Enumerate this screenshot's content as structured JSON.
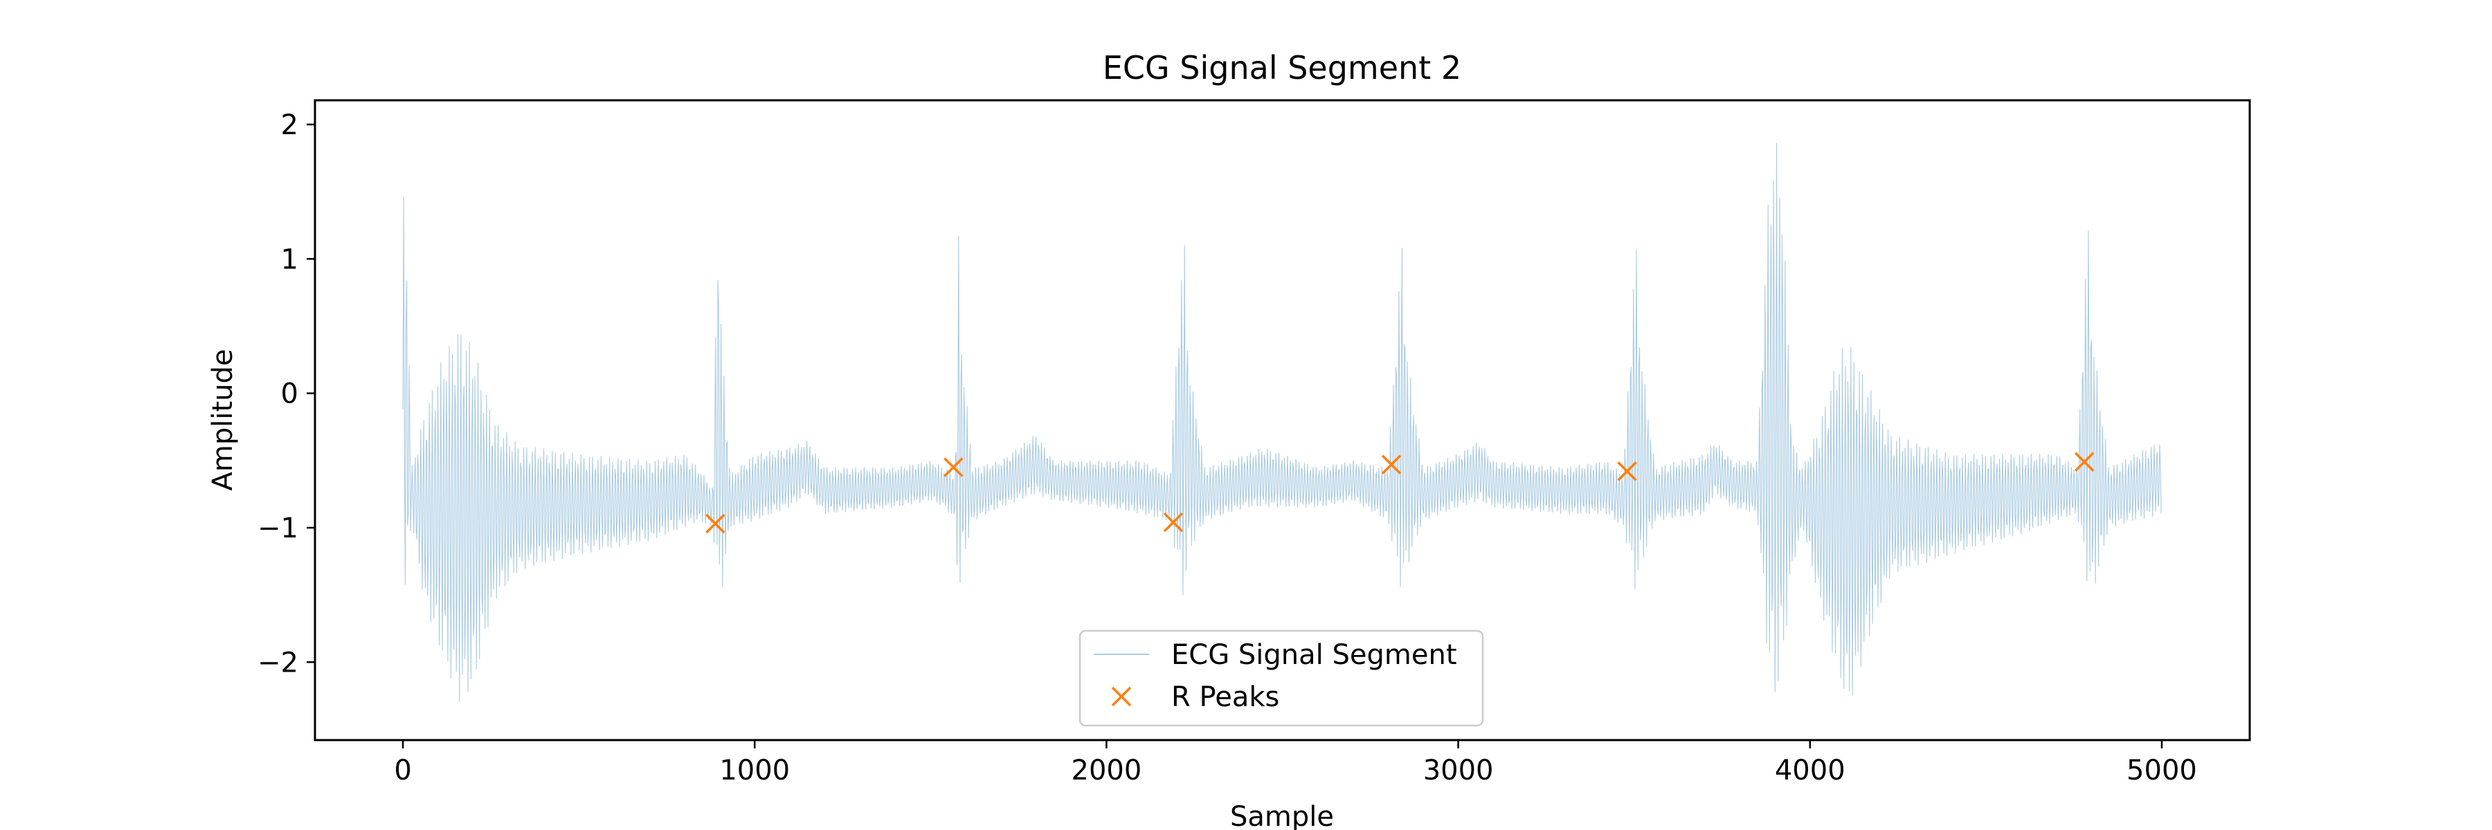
{
  "chart_data": {
    "type": "line",
    "title": "ECG Signal Segment 2",
    "xlabel": "Sample",
    "ylabel": "Amplitude",
    "xlim": [
      -250,
      5250
    ],
    "ylim": [
      -2.58,
      2.18
    ],
    "xticks": [
      0,
      1000,
      2000,
      3000,
      4000,
      5000
    ],
    "xtick_labels": [
      "0",
      "1000",
      "2000",
      "3000",
      "4000",
      "5000"
    ],
    "yticks": [
      -2,
      -1,
      0,
      1,
      2
    ],
    "ytick_labels": [
      "−2",
      "−1",
      "0",
      "1",
      "2"
    ],
    "grid": false,
    "legend_position": "lower center",
    "series": [
      {
        "name": "ECG Signal Segment",
        "kind": "line",
        "color": "#1f77b4",
        "x_start": 0,
        "x_end": 4999,
        "envelope": [
          [
            0,
            -1.78,
            1.55
          ],
          [
            10,
            -1.4,
            1.2
          ],
          [
            25,
            -0.95,
            -0.55
          ],
          [
            60,
            -1.55,
            -0.15
          ],
          [
            110,
            -1.95,
            0.25
          ],
          [
            160,
            -2.3,
            0.5
          ],
          [
            200,
            -2.2,
            0.35
          ],
          [
            260,
            -1.55,
            -0.2
          ],
          [
            330,
            -1.32,
            -0.38
          ],
          [
            500,
            -1.2,
            -0.45
          ],
          [
            700,
            -1.1,
            -0.5
          ],
          [
            800,
            -1.0,
            -0.45
          ],
          [
            840,
            -0.95,
            -0.55
          ],
          [
            880,
            -1.0,
            -0.7
          ],
          [
            895,
            -1.4,
            1.3
          ],
          [
            905,
            -1.52,
            0.5
          ],
          [
            930,
            -1.0,
            -0.6
          ],
          [
            1000,
            -0.95,
            -0.45
          ],
          [
            1100,
            -0.85,
            -0.4
          ],
          [
            1150,
            -0.75,
            -0.35
          ],
          [
            1200,
            -0.9,
            -0.55
          ],
          [
            1400,
            -0.85,
            -0.55
          ],
          [
            1500,
            -0.8,
            -0.5
          ],
          [
            1540,
            -0.85,
            -0.55
          ],
          [
            1570,
            -0.95,
            -0.6
          ],
          [
            1580,
            -1.6,
            1.25
          ],
          [
            1590,
            -1.3,
            0.3
          ],
          [
            1620,
            -0.95,
            -0.55
          ],
          [
            1700,
            -0.85,
            -0.5
          ],
          [
            1800,
            -0.75,
            -0.3
          ],
          [
            1850,
            -0.8,
            -0.5
          ],
          [
            2000,
            -0.85,
            -0.5
          ],
          [
            2100,
            -0.9,
            -0.5
          ],
          [
            2180,
            -0.95,
            -0.6
          ],
          [
            2220,
            -1.55,
            1.25
          ],
          [
            2235,
            -1.2,
            0.2
          ],
          [
            2280,
            -0.95,
            -0.55
          ],
          [
            2400,
            -0.85,
            -0.45
          ],
          [
            2450,
            -0.85,
            -0.4
          ],
          [
            2600,
            -0.85,
            -0.55
          ],
          [
            2700,
            -0.8,
            -0.5
          ],
          [
            2800,
            -0.95,
            -0.55
          ],
          [
            2840,
            -1.5,
            1.15
          ],
          [
            2855,
            -1.3,
            0.3
          ],
          [
            2900,
            -0.95,
            -0.55
          ],
          [
            3000,
            -0.85,
            -0.45
          ],
          [
            3060,
            -0.8,
            -0.35
          ],
          [
            3100,
            -0.85,
            -0.5
          ],
          [
            3300,
            -0.9,
            -0.55
          ],
          [
            3420,
            -0.9,
            -0.5
          ],
          [
            3470,
            -1.0,
            -0.6
          ],
          [
            3505,
            -1.5,
            1.2
          ],
          [
            3520,
            -1.3,
            0.3
          ],
          [
            3560,
            -0.95,
            -0.55
          ],
          [
            3700,
            -0.9,
            -0.45
          ],
          [
            3730,
            -0.75,
            -0.35
          ],
          [
            3780,
            -0.85,
            -0.5
          ],
          [
            3850,
            -0.9,
            -0.5
          ],
          [
            3880,
            -2.0,
            1.4
          ],
          [
            3900,
            -2.3,
            1.95
          ],
          [
            3920,
            -2.1,
            1.6
          ],
          [
            3950,
            -1.3,
            -0.35
          ],
          [
            3980,
            -1.0,
            -0.55
          ],
          [
            4030,
            -1.6,
            -0.2
          ],
          [
            4080,
            -2.1,
            0.3
          ],
          [
            4110,
            -2.35,
            0.4
          ],
          [
            4160,
            -1.9,
            0.1
          ],
          [
            4230,
            -1.35,
            -0.3
          ],
          [
            4400,
            -1.2,
            -0.45
          ],
          [
            4600,
            -1.05,
            -0.45
          ],
          [
            4700,
            -0.95,
            -0.45
          ],
          [
            4760,
            -0.9,
            -0.55
          ],
          [
            4790,
            -1.45,
            1.35
          ],
          [
            4805,
            -1.5,
            0.4
          ],
          [
            4850,
            -1.0,
            -0.55
          ],
          [
            4999,
            -0.9,
            -0.35
          ]
        ]
      },
      {
        "name": "R Peaks",
        "kind": "scatter",
        "marker": "x",
        "color": "#ff7f0e",
        "x": [
          888,
          1565,
          2190,
          2810,
          3480,
          4780
        ],
        "y": [
          -0.97,
          -0.55,
          -0.96,
          -0.53,
          -0.58,
          -0.51
        ]
      }
    ]
  }
}
